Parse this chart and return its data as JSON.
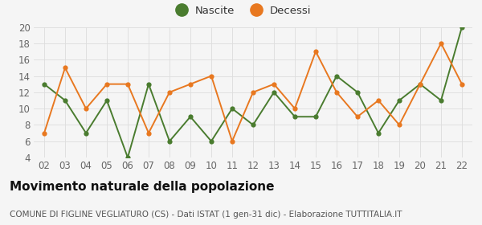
{
  "years": [
    "02",
    "03",
    "04",
    "05",
    "06",
    "07",
    "08",
    "09",
    "10",
    "11",
    "12",
    "13",
    "14",
    "15",
    "16",
    "17",
    "18",
    "19",
    "20",
    "21",
    "22"
  ],
  "nascite": [
    13,
    11,
    7,
    11,
    4,
    13,
    6,
    9,
    6,
    10,
    8,
    12,
    9,
    9,
    14,
    12,
    7,
    11,
    13,
    11,
    20
  ],
  "decessi": [
    7,
    15,
    10,
    13,
    13,
    7,
    12,
    13,
    14,
    6,
    12,
    13,
    10,
    17,
    12,
    9,
    11,
    8,
    13,
    18,
    13
  ],
  "nascite_color": "#4a7c2f",
  "decessi_color": "#e87820",
  "ylim": [
    4,
    20
  ],
  "yticks": [
    4,
    6,
    8,
    10,
    12,
    14,
    16,
    18,
    20
  ],
  "title": "Movimento naturale della popolazione",
  "subtitle": "COMUNE DI FIGLINE VEGLIATURO (CS) - Dati ISTAT (1 gen-31 dic) - Elaborazione TUTTITALIA.IT",
  "legend_labels": [
    "Nascite",
    "Decessi"
  ],
  "background_color": "#f5f5f5",
  "grid_color": "#dddddd",
  "tick_color": "#666666",
  "title_fontsize": 11,
  "subtitle_fontsize": 7.5,
  "axis_fontsize": 8.5,
  "legend_fontsize": 9.5
}
